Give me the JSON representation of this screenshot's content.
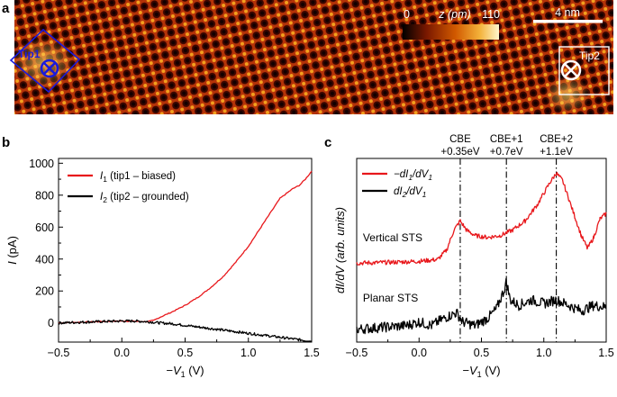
{
  "panel_a": {
    "label": "a",
    "colorbar": {
      "min": "0",
      "max": "110",
      "label": "z (pm)",
      "colors": [
        "#000000",
        "#7a1800",
        "#d25a00",
        "#f3b23a",
        "#fff6cc"
      ]
    },
    "scalebar": {
      "label": "4 nm"
    },
    "tip1": {
      "label": "Tip1",
      "color": "#1a1adc"
    },
    "tip2": {
      "label": "Tip2",
      "color": "#ffffff"
    }
  },
  "chart_data": [
    {
      "panel": "b",
      "type": "line",
      "xlabel": "−V",
      "xlabel_sub": "1",
      "xlabel_unit": " (V)",
      "ylabel": "I",
      "ylabel_unit": " (pA)",
      "xlim": [
        -0.5,
        1.5
      ],
      "ylim": [
        -120,
        1030
      ],
      "xticks": [
        -0.5,
        0.0,
        0.5,
        1.0,
        1.5
      ],
      "xtick_labels": [
        "−0.5",
        "0.0",
        "0.5",
        "1.0",
        "1.5"
      ],
      "yticks": [
        0,
        200,
        400,
        600,
        800,
        1000
      ],
      "ytick_labels": [
        "0",
        "200",
        "400",
        "600",
        "800",
        "1000"
      ],
      "series": [
        {
          "name_main": "I",
          "name_sub": "1",
          "name_rest": " (tip1 – biased)",
          "color": "#e8171b",
          "x": [
            -0.5,
            -0.3,
            -0.1,
            0.0,
            0.1,
            0.2,
            0.25,
            0.3,
            0.4,
            0.5,
            0.6,
            0.7,
            0.8,
            0.9,
            0.95,
            1.0,
            1.05,
            1.1,
            1.15,
            1.2,
            1.25,
            1.3,
            1.35,
            1.4,
            1.45,
            1.5
          ],
          "y": [
            0,
            5,
            10,
            12,
            10,
            8,
            15,
            35,
            70,
            110,
            160,
            220,
            290,
            380,
            430,
            480,
            540,
            600,
            660,
            720,
            780,
            810,
            840,
            860,
            900,
            950
          ]
        },
        {
          "name_main": "I",
          "name_sub": "2",
          "name_rest": " (tip2 – grounded)",
          "color": "#000000",
          "x": [
            -0.5,
            -0.3,
            -0.1,
            0.0,
            0.1,
            0.2,
            0.3,
            0.4,
            0.5,
            0.6,
            0.7,
            0.8,
            0.9,
            1.0,
            1.1,
            1.2,
            1.3,
            1.4,
            1.5
          ],
          "y": [
            0,
            5,
            10,
            12,
            12,
            8,
            0,
            -5,
            -15,
            -25,
            -35,
            -45,
            -55,
            -65,
            -75,
            -85,
            -95,
            -105,
            -115
          ]
        }
      ]
    },
    {
      "panel": "c",
      "type": "line",
      "xlabel": "−V",
      "xlabel_sub": "1",
      "xlabel_unit": " (V)",
      "ylabel": "dI/dV (arb. units)",
      "xlim": [
        -0.5,
        1.5
      ],
      "ylim": [
        0,
        10
      ],
      "xticks": [
        -0.5,
        0.0,
        0.5,
        1.0,
        1.5
      ],
      "xtick_labels": [
        "−0.5",
        "0.0",
        "0.5",
        "1.0",
        "1.5"
      ],
      "markers": [
        {
          "x": 0.33,
          "label1": "CBE",
          "label2": "+0.35eV"
        },
        {
          "x": 0.7,
          "label1": "CBE+1",
          "label2": "+0.7eV"
        },
        {
          "x": 1.1,
          "label1": "CBE+2",
          "label2": "+1.1eV"
        }
      ],
      "annotations": [
        {
          "text": "Vertical STS",
          "x": -0.45,
          "y": 5.5
        },
        {
          "text": "Planar STS",
          "x": -0.45,
          "y": 2.2
        }
      ],
      "series": [
        {
          "name_pre": "−dI",
          "name_sub1": "1",
          "name_mid": "/dV",
          "name_sub2": "1",
          "color": "#e8171b",
          "x": [
            -0.5,
            -0.2,
            0.0,
            0.15,
            0.22,
            0.28,
            0.33,
            0.38,
            0.45,
            0.55,
            0.65,
            0.75,
            0.85,
            0.95,
            1.05,
            1.1,
            1.15,
            1.2,
            1.25,
            1.3,
            1.35,
            1.4,
            1.45,
            1.5
          ],
          "y": [
            4.3,
            4.35,
            4.4,
            4.5,
            5.0,
            6.1,
            6.6,
            6.1,
            5.8,
            5.7,
            5.8,
            6.1,
            6.6,
            7.5,
            8.7,
            9.2,
            8.8,
            7.8,
            6.8,
            5.8,
            5.1,
            5.7,
            6.7,
            7.0
          ]
        },
        {
          "name_pre": "dI",
          "name_sub1": "2",
          "name_mid": "/dV",
          "name_sub2": "1",
          "color": "#000000",
          "x": [
            -0.5,
            -0.3,
            -0.1,
            0.0,
            0.1,
            0.2,
            0.3,
            0.35,
            0.45,
            0.55,
            0.62,
            0.68,
            0.7,
            0.73,
            0.8,
            0.9,
            1.0,
            1.1,
            1.2,
            1.3,
            1.4,
            1.5
          ],
          "y": [
            0.7,
            0.8,
            0.9,
            1.1,
            0.9,
            1.3,
            1.6,
            1.1,
            0.9,
            1.3,
            1.8,
            2.8,
            3.3,
            2.3,
            2.0,
            2.3,
            2.1,
            2.3,
            2.0,
            1.7,
            2.0,
            1.9
          ]
        }
      ]
    }
  ]
}
